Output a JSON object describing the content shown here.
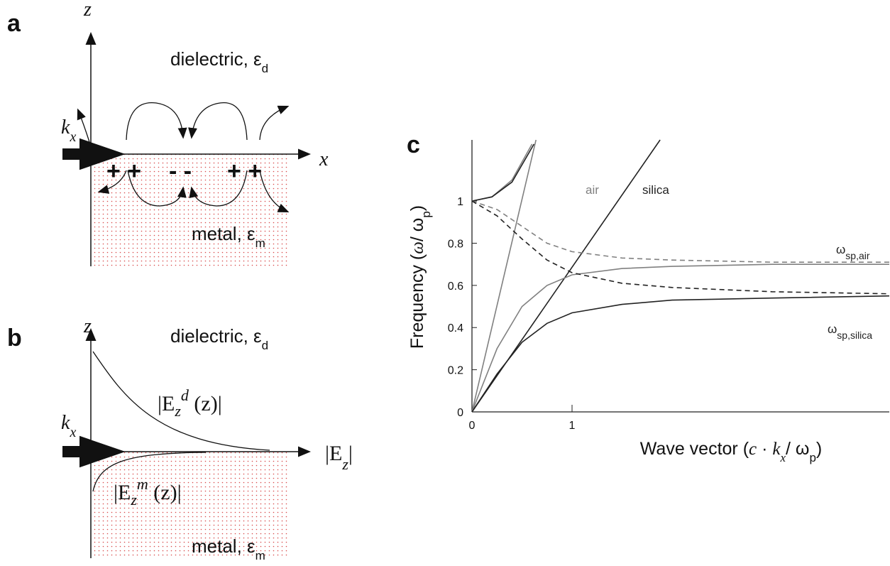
{
  "panels": {
    "a": {
      "label": "a",
      "z_axis": "z",
      "x_axis": "x",
      "wave": {
        "text": "k",
        "sub": "x"
      },
      "dielectric": {
        "text": "dielectric, ε",
        "sub": "d"
      },
      "metal": {
        "text": "metal, ε",
        "sub": "m"
      },
      "charges": [
        "+ +",
        "- -",
        "+ +"
      ]
    },
    "b": {
      "label": "b",
      "z_axis": "z",
      "wave": {
        "text": "k",
        "sub": "x"
      },
      "dielectric": {
        "text": "dielectric, ε",
        "sub": "d"
      },
      "metal": {
        "text": "metal, ε",
        "sub": "m"
      },
      "field_axis": {
        "open": "|E",
        "sub": "z",
        "close": "|"
      },
      "field_d": {
        "open": "|E",
        "sub": "z",
        "sup": "d",
        "close": " (z)|"
      },
      "field_m": {
        "open": "|E",
        "sub": "z",
        "sup": "m",
        "close": " (z)|"
      }
    }
  },
  "chart_data": {
    "type": "line",
    "panel_label": "c",
    "y_label": [
      {
        "text": "Frequency ("
      },
      {
        "text": "ω",
        "italic": true
      },
      {
        "text": "/ ω"
      },
      {
        "text": "p",
        "sub": true
      },
      {
        "text": ")"
      }
    ],
    "x_label": [
      {
        "text": "Wave vector ("
      },
      {
        "text": "c",
        "italic": true
      },
      {
        "text": " · "
      },
      {
        "text": "k",
        "italic": true
      },
      {
        "text": "x",
        "sub": true,
        "italic": true
      },
      {
        "text": "/ ω"
      },
      {
        "text": "p",
        "sub": true
      },
      {
        "text": ")"
      }
    ],
    "xlim": [
      0,
      4.17
    ],
    "ylim": [
      0,
      1.29
    ],
    "xticks": [
      0,
      1
    ],
    "yticks": [
      0,
      0.2,
      0.4,
      0.6,
      0.8,
      1
    ],
    "series": [
      {
        "color": "#808080",
        "dash": false,
        "x": [
          0,
          0.64
        ],
        "values": [
          0,
          1.29
        ]
      },
      {
        "color": "#222222",
        "dash": false,
        "x": [
          0,
          1.88
        ],
        "values": [
          0,
          1.29
        ]
      },
      {
        "color": "#808080",
        "dash": false,
        "x": [
          0,
          0.2,
          0.4,
          0.6
        ],
        "values": [
          1.0,
          1.02,
          1.1,
          1.27
        ]
      },
      {
        "color": "#222222",
        "dash": false,
        "x": [
          0,
          0.2,
          0.4,
          0.62
        ],
        "values": [
          1.0,
          1.02,
          1.09,
          1.27
        ]
      },
      {
        "color": "#808080",
        "dash": false,
        "x": [
          0,
          0.25,
          0.5,
          0.75,
          1,
          1.5,
          2,
          3,
          4.17
        ],
        "values": [
          0,
          0.3,
          0.5,
          0.6,
          0.65,
          0.68,
          0.69,
          0.7,
          0.7
        ]
      },
      {
        "color": "#222222",
        "dash": false,
        "x": [
          0,
          0.25,
          0.5,
          0.75,
          1,
          1.5,
          2,
          3,
          4.17
        ],
        "values": [
          0,
          0.18,
          0.33,
          0.42,
          0.47,
          0.51,
          0.53,
          0.54,
          0.55
        ]
      },
      {
        "color": "#808080",
        "dash": true,
        "x": [
          0,
          0.25,
          0.5,
          0.75,
          1,
          1.5,
          2,
          3,
          4.17
        ],
        "values": [
          1.0,
          0.96,
          0.88,
          0.8,
          0.76,
          0.73,
          0.72,
          0.71,
          0.71
        ]
      },
      {
        "color": "#222222",
        "dash": true,
        "x": [
          0,
          0.25,
          0.5,
          0.75,
          1,
          1.5,
          2,
          3,
          4.17
        ],
        "values": [
          1.0,
          0.93,
          0.82,
          0.72,
          0.66,
          0.61,
          0.59,
          0.57,
          0.56
        ]
      }
    ],
    "annotations": [
      {
        "text": "air",
        "color": "#808080"
      },
      {
        "text": "silica",
        "color": "#222222"
      },
      {
        "text": "ω",
        "sub": "sp,air",
        "color": "#222222"
      },
      {
        "text": "ω",
        "sub": "sp,silica",
        "color": "#222222"
      }
    ]
  }
}
